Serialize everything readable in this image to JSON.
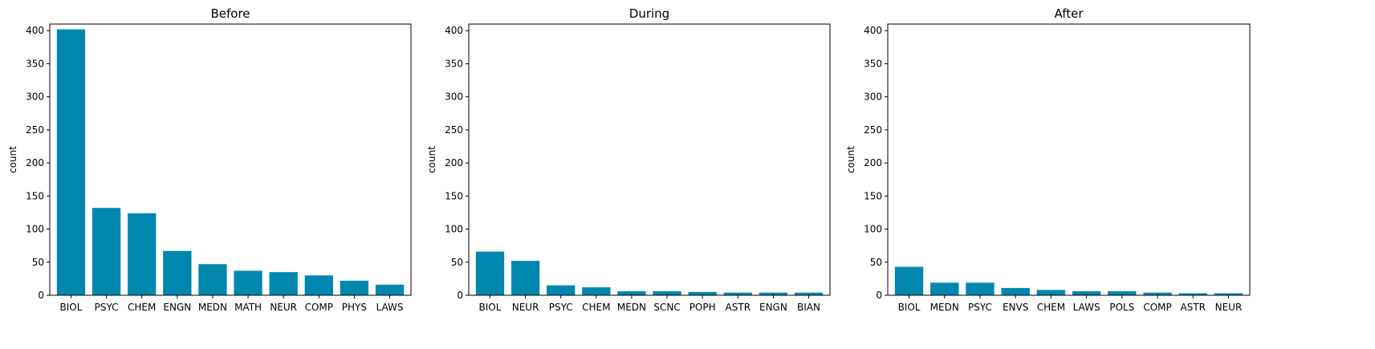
{
  "figure": {
    "bar_color": "#0087b0"
  },
  "chart_data": [
    {
      "type": "bar",
      "title": "Before",
      "xlabel": "",
      "ylabel": "count",
      "ylim": [
        0,
        410
      ],
      "yticks": [
        0,
        50,
        100,
        150,
        200,
        250,
        300,
        350,
        400
      ],
      "categories": [
        "BIOL",
        "PSYC",
        "CHEM",
        "ENGN",
        "MEDN",
        "MATH",
        "NEUR",
        "COMP",
        "PHYS",
        "LAWS"
      ],
      "values": [
        402,
        132,
        124,
        67,
        47,
        37,
        35,
        30,
        22,
        16
      ]
    },
    {
      "type": "bar",
      "title": "During",
      "xlabel": "",
      "ylabel": "count",
      "ylim": [
        0,
        410
      ],
      "yticks": [
        0,
        50,
        100,
        150,
        200,
        250,
        300,
        350,
        400
      ],
      "categories": [
        "BIOL",
        "NEUR",
        "PSYC",
        "CHEM",
        "MEDN",
        "SCNC",
        "POPH",
        "ASTR",
        "ENGN",
        "BIAN"
      ],
      "values": [
        66,
        52,
        15,
        12,
        6,
        6,
        5,
        4,
        4,
        4
      ]
    },
    {
      "type": "bar",
      "title": "After",
      "xlabel": "",
      "ylabel": "count",
      "ylim": [
        0,
        410
      ],
      "yticks": [
        0,
        50,
        100,
        150,
        200,
        250,
        300,
        350,
        400
      ],
      "categories": [
        "BIOL",
        "MEDN",
        "PSYC",
        "ENVS",
        "CHEM",
        "LAWS",
        "POLS",
        "COMP",
        "ASTR",
        "NEUR"
      ],
      "values": [
        43,
        19,
        19,
        11,
        8,
        6,
        6,
        4,
        3,
        3
      ]
    }
  ]
}
